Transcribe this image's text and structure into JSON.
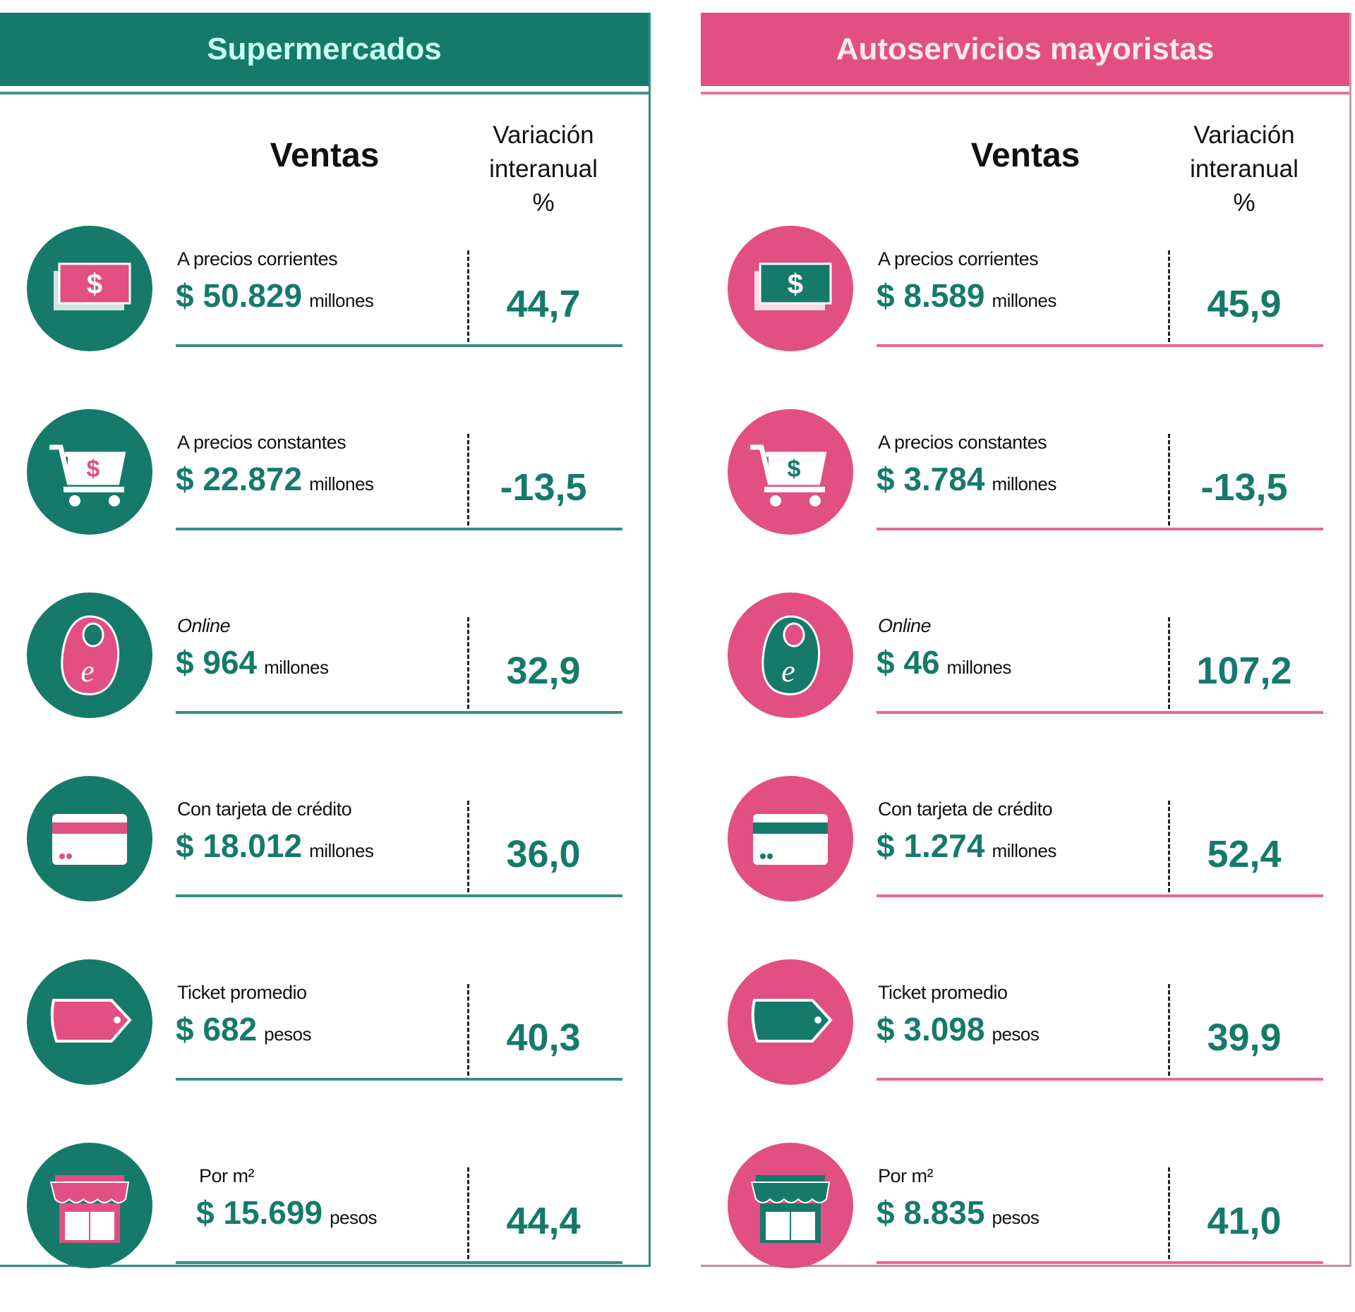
{
  "panels": [
    {
      "title": "Supermercados",
      "ventas": "Ventas",
      "var_header": [
        "Variación",
        "interanual",
        "%"
      ],
      "rows": [
        {
          "icon": "money-icon",
          "label": "A precios corrientes",
          "value": "$ 50.829",
          "unit": "millones",
          "pct": "44,7"
        },
        {
          "icon": "cart-icon",
          "label": "A precios constantes",
          "value": "$ 22.872",
          "unit": "millones",
          "pct": "-13,5"
        },
        {
          "icon": "online-bag-icon",
          "label": "Online",
          "value": "$ 964",
          "unit": "millones",
          "pct": "32,9"
        },
        {
          "icon": "credit-card-icon",
          "label": "Con tarjeta de crédito",
          "value": "$ 18.012",
          "unit": "millones",
          "pct": "36,0"
        },
        {
          "icon": "ticket-tag-icon",
          "label": "Ticket promedio",
          "value": "$ 682",
          "unit": "pesos",
          "pct": "40,3"
        },
        {
          "icon": "store-icon",
          "label": "Por m²",
          "value": "$ 15.699",
          "unit": "pesos",
          "pct": "44,4"
        }
      ]
    },
    {
      "title": "Autoservicios mayoristas",
      "ventas": "Ventas",
      "var_header": [
        "Variación",
        "interanual",
        "%"
      ],
      "rows": [
        {
          "icon": "money-icon",
          "label": "A precios corrientes",
          "value": "$ 8.589",
          "unit": "millones",
          "pct": "45,9"
        },
        {
          "icon": "cart-icon",
          "label": "A precios constantes",
          "value": "$ 3.784",
          "unit": "millones",
          "pct": "-13,5"
        },
        {
          "icon": "online-bag-icon",
          "label": "Online",
          "value": "$ 46",
          "unit": "millones",
          "pct": "107,2"
        },
        {
          "icon": "credit-card-icon",
          "label": "Con tarjeta de crédito",
          "value": "$ 1.274",
          "unit": "millones",
          "pct": "52,4"
        },
        {
          "icon": "ticket-tag-icon",
          "label": "Ticket promedio",
          "value": "$ 3.098",
          "unit": "pesos",
          "pct": "39,9"
        },
        {
          "icon": "store-icon",
          "label": "Por m²",
          "value": "$ 8.835",
          "unit": "pesos",
          "pct": "41,0"
        }
      ]
    }
  ],
  "colors": {
    "teal": "#167a6b",
    "pink": "#e24f82"
  }
}
